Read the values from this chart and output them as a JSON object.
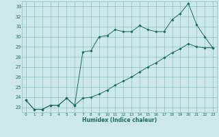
{
  "xlabel": "Humidex (Indice chaleur)",
  "bg_color": "#cce8e8",
  "grid_color": "#88c0c0",
  "line_color": "#1a6b5a",
  "xlim": [
    -0.5,
    23.5
  ],
  "ylim": [
    22.5,
    33.5
  ],
  "xticks": [
    0,
    1,
    2,
    3,
    4,
    5,
    6,
    7,
    8,
    9,
    10,
    11,
    12,
    13,
    14,
    15,
    16,
    17,
    18,
    19,
    20,
    21,
    22,
    23
  ],
  "yticks": [
    23,
    24,
    25,
    26,
    27,
    28,
    29,
    30,
    31,
    32,
    33
  ],
  "line1_x": [
    0,
    1,
    2,
    3,
    4,
    5,
    6,
    7,
    8,
    9,
    10,
    11,
    12,
    13,
    14,
    15,
    16,
    17,
    18,
    19,
    20,
    21,
    22,
    23
  ],
  "line1_y": [
    23.7,
    22.8,
    22.8,
    23.2,
    23.2,
    23.9,
    23.2,
    28.5,
    28.6,
    30.0,
    30.1,
    30.7,
    30.5,
    30.5,
    31.1,
    30.7,
    30.5,
    30.5,
    31.7,
    32.3,
    33.3,
    31.2,
    30.0,
    28.9
  ],
  "line2_x": [
    0,
    1,
    2,
    3,
    4,
    5,
    6,
    7,
    8,
    9,
    10,
    11,
    12,
    13,
    14,
    15,
    16,
    17,
    18,
    19,
    20,
    21,
    22,
    23
  ],
  "line2_y": [
    23.7,
    22.8,
    22.8,
    23.2,
    23.2,
    23.9,
    23.2,
    23.9,
    24.0,
    24.3,
    24.7,
    25.2,
    25.6,
    26.0,
    26.5,
    27.0,
    27.4,
    27.9,
    28.4,
    28.8,
    29.3,
    29.0,
    28.9,
    28.9
  ]
}
